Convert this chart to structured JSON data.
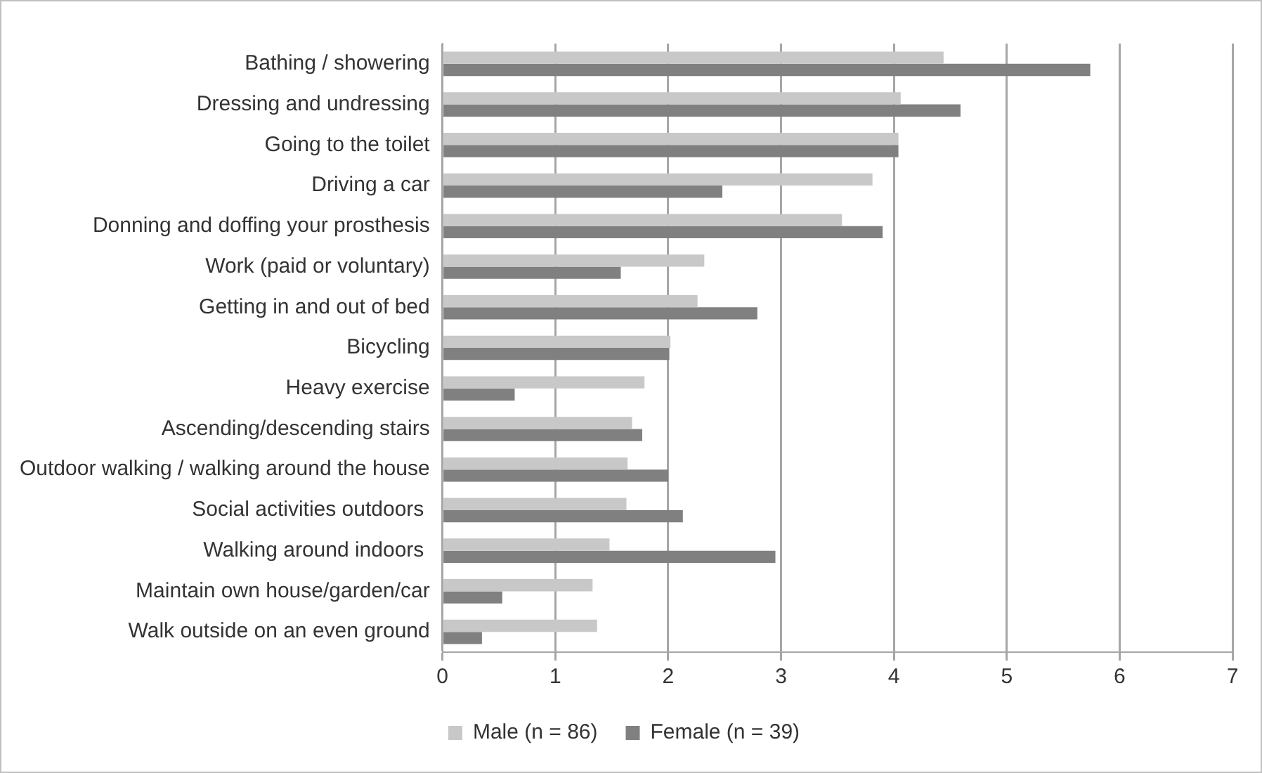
{
  "chart_data": {
    "type": "bar",
    "orientation": "horizontal",
    "categories": [
      "Bathing / showering",
      "Dressing and undressing",
      "Going to the toilet",
      "Driving a car",
      "Donning and doffing your prosthesis",
      "Work (paid or voluntary)",
      "Getting in and out of bed",
      "Bicycling",
      "Heavy exercise",
      "Ascending/descending stairs",
      "Outdoor walking / walking around the house",
      "Social activities outdoors ",
      "Walking around indoors ",
      "Maintain own house/garden/car",
      "Walk outside on an even ground"
    ],
    "series": [
      {
        "name": "Male (n = 86)",
        "color": "#c8c8c8",
        "values": [
          4.44,
          4.06,
          4.04,
          3.81,
          3.54,
          2.32,
          2.26,
          2.02,
          1.79,
          1.68,
          1.64,
          1.63,
          1.48,
          1.33,
          1.37
        ]
      },
      {
        "name": "Female (n = 39)",
        "color": "#808080",
        "values": [
          5.74,
          4.59,
          4.04,
          2.48,
          3.9,
          1.58,
          2.79,
          2.01,
          0.64,
          1.77,
          2.0,
          2.13,
          2.95,
          0.53,
          0.35
        ]
      }
    ],
    "xlim": [
      0,
      7
    ],
    "xticks": [
      0,
      1,
      2,
      3,
      4,
      5,
      6,
      7
    ],
    "grid": "x",
    "legend": "bottom"
  }
}
